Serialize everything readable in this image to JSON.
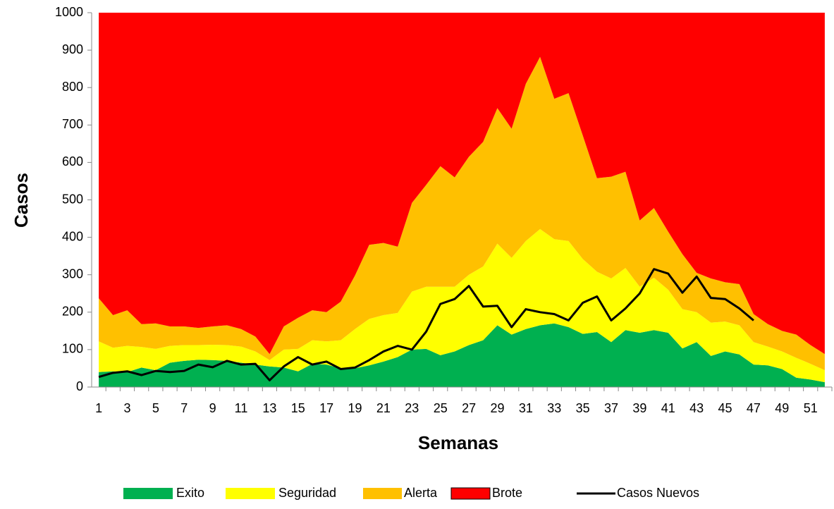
{
  "chart_data": {
    "type": "stacked-area",
    "x_label": "Semanas",
    "y_label": "Casos",
    "categories": [
      1,
      null,
      3,
      null,
      5,
      null,
      7,
      null,
      9,
      null,
      11,
      null,
      13,
      null,
      15,
      null,
      17,
      null,
      19,
      null,
      21,
      null,
      23,
      null,
      25,
      null,
      27,
      null,
      29,
      null,
      31,
      null,
      33,
      null,
      35,
      null,
      37,
      null,
      39,
      null,
      41,
      null,
      43,
      null,
      45,
      null,
      47,
      null,
      49,
      null,
      51,
      null
    ],
    "ylim": [
      0,
      1000
    ],
    "yticks": [
      0,
      100,
      200,
      300,
      400,
      500,
      600,
      700,
      800,
      900,
      1000
    ],
    "series": [
      {
        "name": "Exito",
        "color": "#00b050",
        "values": [
          40,
          42,
          40,
          52,
          45,
          65,
          70,
          73,
          72,
          70,
          65,
          60,
          55,
          52,
          42,
          62,
          60,
          50,
          50,
          58,
          68,
          80,
          100,
          102,
          85,
          95,
          112,
          125,
          165,
          140,
          155,
          165,
          170,
          160,
          142,
          147,
          120,
          152,
          145,
          152,
          145,
          103,
          120,
          83,
          95,
          87,
          60,
          58,
          48,
          25,
          20,
          13
        ]
      },
      {
        "name": "Seguridad",
        "color": "#ffff00",
        "values": [
          82,
          63,
          70,
          55,
          57,
          45,
          42,
          39,
          41,
          42,
          43,
          35,
          17,
          48,
          60,
          63,
          62,
          75,
          105,
          124,
          124,
          118,
          155,
          166,
          183,
          173,
          188,
          197,
          218,
          205,
          235,
          257,
          225,
          230,
          200,
          161,
          170,
          166,
          123,
          140,
          115,
          105,
          80,
          89,
          80,
          78,
          60,
          50,
          47,
          53,
          42,
          32
        ]
      },
      {
        "name": "Alerta",
        "color": "#ffc000",
        "values": [
          115,
          87,
          95,
          61,
          68,
          52,
          50,
          46,
          49,
          53,
          47,
          40,
          16,
          62,
          83,
          80,
          78,
          103,
          143,
          198,
          193,
          177,
          237,
          272,
          322,
          292,
          315,
          333,
          362,
          345,
          420,
          460,
          375,
          395,
          330,
          250,
          272,
          257,
          177,
          186,
          155,
          147,
          105,
          118,
          105,
          110,
          75,
          60,
          55,
          62,
          50,
          43
        ]
      },
      {
        "name": "Brote",
        "color": "#ff0000",
        "values": [
          763,
          808,
          795,
          832,
          830,
          838,
          838,
          842,
          838,
          835,
          845,
          865,
          912,
          838,
          815,
          795,
          800,
          772,
          702,
          620,
          615,
          625,
          508,
          460,
          410,
          440,
          385,
          345,
          255,
          310,
          190,
          118,
          230,
          215,
          328,
          442,
          438,
          425,
          555,
          522,
          585,
          645,
          695,
          710,
          720,
          725,
          805,
          832,
          850,
          860,
          888,
          912
        ]
      },
      {
        "name": "Casos Nuevos",
        "type": "line",
        "color": "#000000",
        "values": [
          27,
          38,
          42,
          32,
          43,
          40,
          43,
          60,
          53,
          70,
          60,
          62,
          18,
          55,
          80,
          60,
          68,
          48,
          52,
          72,
          95,
          110,
          100,
          148,
          222,
          235,
          270,
          215,
          217,
          160,
          208,
          200,
          195,
          178,
          225,
          242,
          178,
          210,
          250,
          315,
          303,
          252,
          295,
          238,
          235,
          210,
          178,
          null,
          null,
          null,
          null,
          null
        ]
      }
    ]
  }
}
